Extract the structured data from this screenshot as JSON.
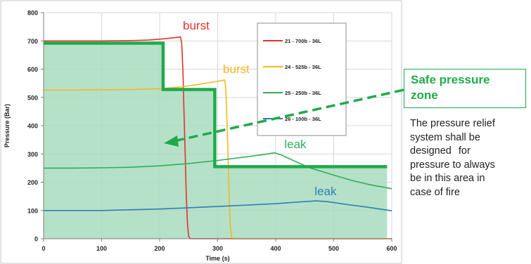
{
  "chart_data": {
    "type": "line",
    "xlabel": "Time (s)",
    "ylabel": "Pressure (Bar)",
    "xlim": [
      0,
      600
    ],
    "ylim": [
      0,
      800
    ],
    "x_ticks": [
      0,
      100,
      200,
      300,
      400,
      500,
      600
    ],
    "y_ticks": [
      0,
      100,
      200,
      300,
      400,
      500,
      600,
      700,
      800
    ],
    "grid": true,
    "legend_position": "top-right",
    "series": [
      {
        "name": "21 - 700b - 36L",
        "color": "#e0332c",
        "points": [
          [
            0,
            700
          ],
          [
            50,
            700
          ],
          [
            100,
            700
          ],
          [
            150,
            701
          ],
          [
            180,
            703
          ],
          [
            200,
            706
          ],
          [
            215,
            709
          ],
          [
            228,
            712
          ],
          [
            236,
            714
          ],
          [
            238,
            690
          ],
          [
            240,
            600
          ],
          [
            242,
            450
          ],
          [
            244,
            300
          ],
          [
            246,
            150
          ],
          [
            248,
            50
          ],
          [
            250,
            8
          ],
          [
            253,
            0
          ],
          [
            600,
            0
          ]
        ]
      },
      {
        "name": "24 - 525b - 36L",
        "color": "#f5b820",
        "points": [
          [
            0,
            526
          ],
          [
            50,
            526
          ],
          [
            100,
            527
          ],
          [
            150,
            528
          ],
          [
            200,
            531
          ],
          [
            240,
            538
          ],
          [
            270,
            547
          ],
          [
            300,
            557
          ],
          [
            312,
            562
          ],
          [
            314,
            530
          ],
          [
            316,
            420
          ],
          [
            318,
            280
          ],
          [
            320,
            140
          ],
          [
            322,
            40
          ],
          [
            324,
            5
          ],
          [
            327,
            0
          ],
          [
            600,
            0
          ]
        ]
      },
      {
        "name": "25 - 250b - 36L",
        "color": "#2fb05a",
        "points": [
          [
            0,
            250
          ],
          [
            50,
            250
          ],
          [
            100,
            251
          ],
          [
            150,
            253
          ],
          [
            200,
            258
          ],
          [
            250,
            266
          ],
          [
            300,
            277
          ],
          [
            350,
            290
          ],
          [
            380,
            298
          ],
          [
            398,
            304
          ],
          [
            410,
            296
          ],
          [
            430,
            277
          ],
          [
            460,
            250
          ],
          [
            500,
            225
          ],
          [
            530,
            207
          ],
          [
            560,
            192
          ],
          [
            600,
            177
          ]
        ]
      },
      {
        "name": "26 - 100b - 36L",
        "color": "#2f7fb5",
        "points": [
          [
            0,
            100
          ],
          [
            100,
            100
          ],
          [
            200,
            105
          ],
          [
            300,
            114
          ],
          [
            400,
            124
          ],
          [
            440,
            130
          ],
          [
            470,
            134
          ],
          [
            490,
            131
          ],
          [
            520,
            122
          ],
          [
            560,
            111
          ],
          [
            600,
            99
          ]
        ]
      }
    ],
    "safe_zone": {
      "color": "#1faa4a",
      "fill": "#a8dcc0",
      "points": [
        [
          0,
          692
        ],
        [
          206,
          692
        ],
        [
          206,
          528
        ],
        [
          295,
          528
        ],
        [
          295,
          255
        ],
        [
          592,
          255
        ],
        [
          592,
          0
        ],
        [
          0,
          0
        ]
      ],
      "boundary": [
        [
          0,
          692
        ],
        [
          206,
          692
        ],
        [
          206,
          528
        ],
        [
          295,
          528
        ],
        [
          295,
          255
        ],
        [
          592,
          255
        ]
      ]
    },
    "annotations": [
      {
        "text": "burst",
        "x": 240,
        "y": 740,
        "color": "#e0332c"
      },
      {
        "text": "burst",
        "x": 309,
        "y": 586,
        "color": "#f5b820"
      },
      {
        "text": "leak",
        "x": 415,
        "y": 320,
        "color": "#2fb05a"
      },
      {
        "text": "leak",
        "x": 467,
        "y": 154,
        "color": "#2f7fb5"
      }
    ]
  },
  "callout": {
    "title_line1": "Safe pressure",
    "title_line2": "zone",
    "body": [
      "The pressure relief",
      "system shall be",
      "designed for",
      "pressure to always",
      "be in this area in",
      "case of fire"
    ]
  }
}
